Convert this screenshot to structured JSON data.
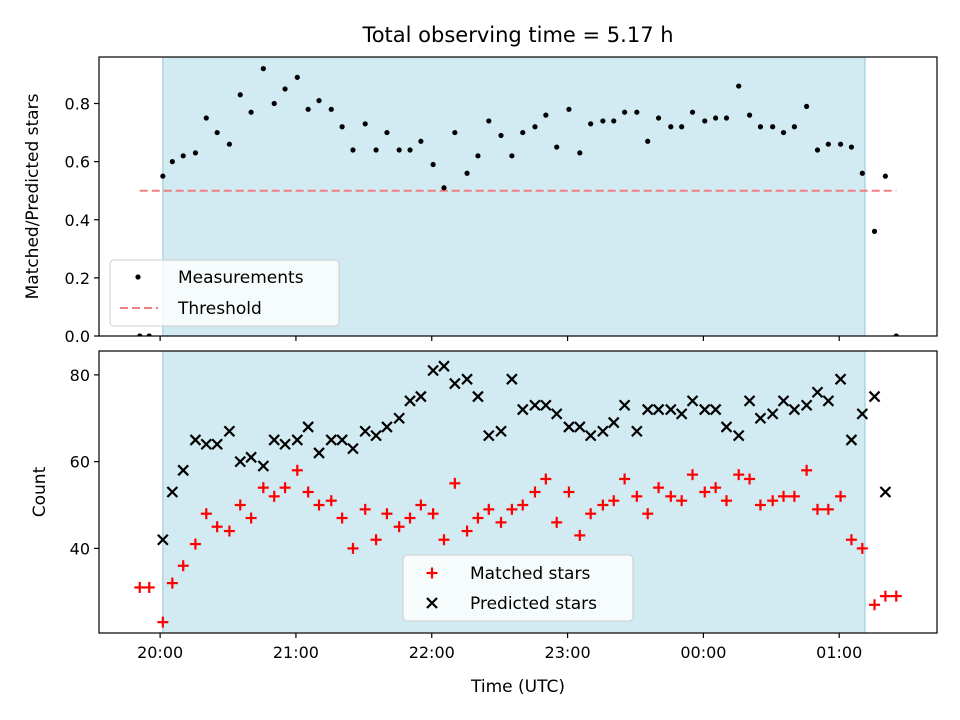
{
  "figure": {
    "title": "Total observing time = 5.17 h",
    "xlabel": "Time (UTC)",
    "xticks": [
      {
        "x": 0,
        "label": "20:00"
      },
      {
        "x": 1,
        "label": "21:00"
      },
      {
        "x": 2,
        "label": "22:00"
      },
      {
        "x": 3,
        "label": "23:00"
      },
      {
        "x": 4,
        "label": "00:00"
      },
      {
        "x": 5,
        "label": "01:00"
      }
    ],
    "shaded_interval": [
      0.02,
      5.19
    ],
    "colors": {
      "shade": "#add8e6",
      "threshold": "#f08080",
      "matched": "#ff0000",
      "predicted": "#000000",
      "measurement": "#000000"
    }
  },
  "chart_data": [
    {
      "type": "scatter",
      "ylabel": "Matched/Predicted stars",
      "xlim": [
        -0.45,
        5.72
      ],
      "ylim": [
        0,
        0.96
      ],
      "yticks": [
        {
          "y": 0.0,
          "label": "0.0"
        },
        {
          "y": 0.2,
          "label": "0.2"
        },
        {
          "y": 0.4,
          "label": "0.4"
        },
        {
          "y": 0.6,
          "label": "0.6"
        },
        {
          "y": 0.8,
          "label": "0.8"
        }
      ],
      "threshold": {
        "name": "Threshold",
        "y": 0.5,
        "x_range": [
          -0.15,
          5.42
        ]
      },
      "legend": {
        "position": "lower-left",
        "entries": [
          "Measurements",
          "Threshold"
        ]
      },
      "series": [
        {
          "name": "Measurements",
          "marker": "dot",
          "x": [
            -0.15,
            -0.08,
            0.02,
            0.09,
            0.17,
            0.26,
            0.34,
            0.42,
            0.51,
            0.59,
            0.67,
            0.76,
            0.84,
            0.92,
            1.01,
            1.09,
            1.17,
            1.26,
            1.34,
            1.42,
            1.51,
            1.59,
            1.67,
            1.76,
            1.84,
            1.92,
            2.01,
            2.09,
            2.17,
            2.26,
            2.34,
            2.42,
            2.51,
            2.59,
            2.67,
            2.76,
            2.84,
            2.92,
            3.01,
            3.09,
            3.17,
            3.26,
            3.34,
            3.42,
            3.51,
            3.59,
            3.67,
            3.76,
            3.84,
            3.92,
            4.01,
            4.09,
            4.17,
            4.26,
            4.34,
            4.42,
            4.51,
            4.59,
            4.67,
            4.76,
            4.84,
            4.92,
            5.01,
            5.09,
            5.17,
            5.26,
            5.34,
            5.42
          ],
          "y": [
            0.0,
            0.0,
            0.55,
            0.6,
            0.62,
            0.63,
            0.75,
            0.7,
            0.66,
            0.83,
            0.77,
            0.92,
            0.8,
            0.85,
            0.89,
            0.78,
            0.81,
            0.78,
            0.72,
            0.64,
            0.73,
            0.64,
            0.7,
            0.64,
            0.64,
            0.67,
            0.59,
            0.51,
            0.7,
            0.56,
            0.62,
            0.74,
            0.69,
            0.62,
            0.7,
            0.72,
            0.76,
            0.65,
            0.78,
            0.63,
            0.73,
            0.74,
            0.74,
            0.77,
            0.77,
            0.67,
            0.75,
            0.72,
            0.72,
            0.77,
            0.74,
            0.75,
            0.75,
            0.86,
            0.76,
            0.72,
            0.72,
            0.7,
            0.72,
            0.79,
            0.64,
            0.66,
            0.66,
            0.65,
            0.56,
            0.36,
            0.55,
            0.0
          ]
        }
      ]
    },
    {
      "type": "scatter",
      "ylabel": "Count",
      "xlim": [
        -0.45,
        5.72
      ],
      "ylim": [
        20.5,
        85.5
      ],
      "yticks": [
        {
          "y": 40,
          "label": "40"
        },
        {
          "y": 60,
          "label": "60"
        },
        {
          "y": 80,
          "label": "80"
        }
      ],
      "legend": {
        "position": "lower-center",
        "entries": [
          "Matched stars",
          "Predicted stars"
        ]
      },
      "series": [
        {
          "name": "Matched stars",
          "marker": "plus",
          "x": [
            -0.15,
            -0.08,
            0.02,
            0.09,
            0.17,
            0.26,
            0.34,
            0.42,
            0.51,
            0.59,
            0.67,
            0.76,
            0.84,
            0.92,
            1.01,
            1.09,
            1.17,
            1.26,
            1.34,
            1.42,
            1.51,
            1.59,
            1.67,
            1.76,
            1.84,
            1.92,
            2.01,
            2.09,
            2.17,
            2.26,
            2.34,
            2.42,
            2.51,
            2.59,
            2.67,
            2.76,
            2.84,
            2.92,
            3.01,
            3.09,
            3.17,
            3.26,
            3.34,
            3.42,
            3.51,
            3.59,
            3.67,
            3.76,
            3.84,
            3.92,
            4.01,
            4.09,
            4.17,
            4.26,
            4.34,
            4.42,
            4.51,
            4.59,
            4.67,
            4.76,
            4.84,
            4.92,
            5.01,
            5.09,
            5.17,
            5.26,
            5.34,
            5.42
          ],
          "y": [
            31,
            31,
            23,
            32,
            36,
            41,
            48,
            45,
            44,
            50,
            47,
            54,
            52,
            54,
            58,
            53,
            50,
            51,
            47,
            40,
            49,
            42,
            48,
            45,
            47,
            50,
            48,
            42,
            55,
            44,
            47,
            49,
            46,
            49,
            50,
            53,
            56,
            46,
            53,
            43,
            48,
            50,
            51,
            56,
            52,
            48,
            54,
            52,
            51,
            57,
            53,
            54,
            51,
            57,
            56,
            50,
            51,
            52,
            52,
            58,
            49,
            49,
            52,
            42,
            40,
            27,
            29,
            29
          ]
        },
        {
          "name": "Predicted stars",
          "marker": "x",
          "x": [
            0.02,
            0.09,
            0.17,
            0.26,
            0.34,
            0.42,
            0.51,
            0.59,
            0.67,
            0.76,
            0.84,
            0.92,
            1.01,
            1.09,
            1.17,
            1.26,
            1.34,
            1.42,
            1.51,
            1.59,
            1.67,
            1.76,
            1.84,
            1.92,
            2.01,
            2.09,
            2.17,
            2.26,
            2.34,
            2.42,
            2.51,
            2.59,
            2.67,
            2.76,
            2.84,
            2.92,
            3.01,
            3.09,
            3.17,
            3.26,
            3.34,
            3.42,
            3.51,
            3.59,
            3.67,
            3.76,
            3.84,
            3.92,
            4.01,
            4.09,
            4.17,
            4.26,
            4.34,
            4.42,
            4.51,
            4.59,
            4.67,
            4.76,
            4.84,
            4.92,
            5.01,
            5.09,
            5.17,
            5.26,
            5.34
          ],
          "y": [
            42,
            53,
            58,
            65,
            64,
            64,
            67,
            60,
            61,
            59,
            65,
            64,
            65,
            68,
            62,
            65,
            65,
            63,
            67,
            66,
            68,
            70,
            74,
            75,
            81,
            82,
            78,
            79,
            75,
            66,
            67,
            79,
            72,
            73,
            73,
            71,
            68,
            68,
            66,
            67,
            69,
            73,
            67,
            72,
            72,
            72,
            71,
            74,
            72,
            72,
            68,
            66,
            74,
            70,
            71,
            74,
            72,
            73,
            76,
            74,
            79,
            65,
            71,
            75,
            53
          ]
        }
      ]
    }
  ]
}
